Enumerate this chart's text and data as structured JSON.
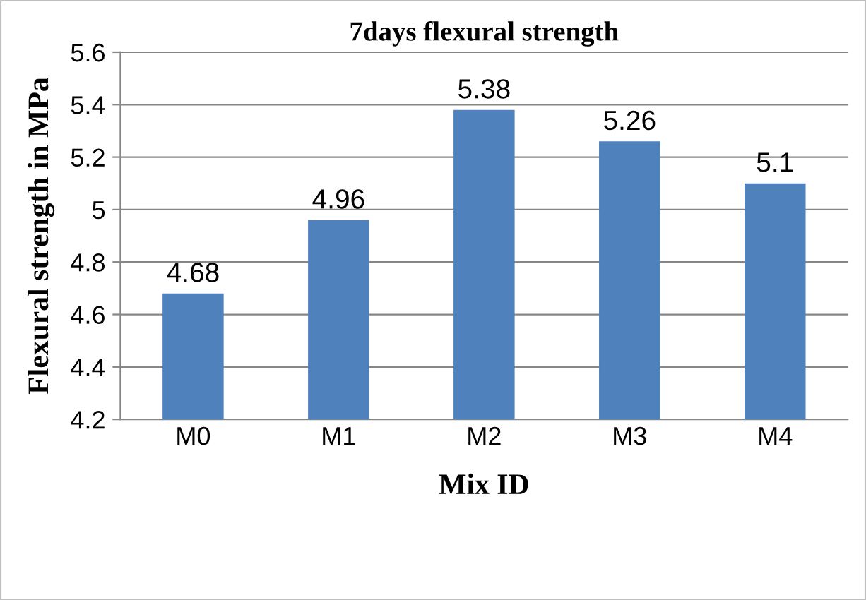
{
  "chart_data": {
    "type": "bar",
    "title": "7days flexural strength",
    "xlabel": "Mix ID",
    "ylabel": "Flexural strength in MPa",
    "categories": [
      "M0",
      "M1",
      "M2",
      "M3",
      "M4"
    ],
    "values": [
      4.68,
      4.96,
      5.38,
      5.26,
      5.1
    ],
    "color": "#4f81bd",
    "ylim": [
      4.2,
      5.6
    ],
    "yticks": [
      4.2,
      4.4,
      4.6,
      4.8,
      5,
      5.2,
      5.4,
      5.6
    ],
    "grid": "y",
    "data_labels": true,
    "legend": false
  }
}
